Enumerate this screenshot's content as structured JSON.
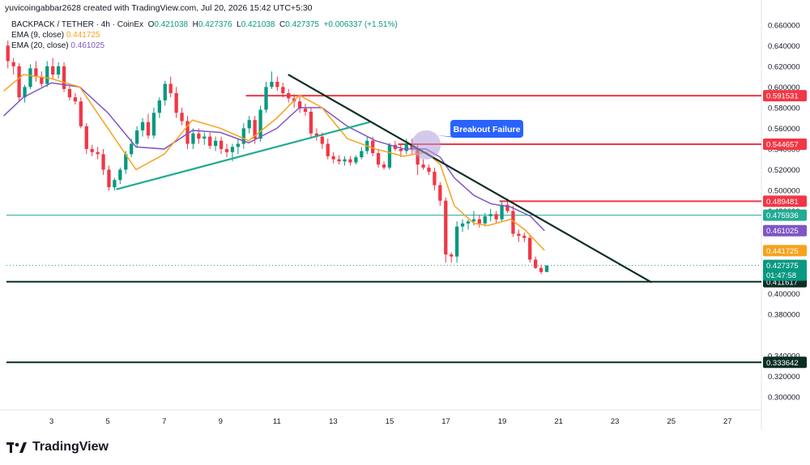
{
  "header": {
    "credit": "yuvicoingabbar2628 created with TradingView.com, Jul 20, 2026 15:42 UTC+5:30"
  },
  "legend": {
    "symbol": "BACKPACK / TETHER · 4h · CoinEx",
    "ohlc": {
      "o_label": "O",
      "o": "0.421038",
      "h_label": "H",
      "h": "0.427376",
      "l_label": "L",
      "l": "0.421038",
      "c_label": "C",
      "c": "0.427375",
      "change": "+0.006337 (+1.51%)"
    },
    "ema9_label": "EMA (9, close)",
    "ema9_value": "0.441725",
    "ema20_label": "EMA (20, close)",
    "ema20_value": "0.461025"
  },
  "footer": {
    "brand": "TradingView"
  },
  "colors": {
    "up": "#089981",
    "down": "#f23645",
    "ema9": "#f7a21b",
    "ema20": "#7e57c2",
    "trend_up": "#22ab94",
    "trend_down": "#0b2e24",
    "hline_red": "#f23645",
    "hline_teal": "#22ab94",
    "hline_dark": "#0b2e24",
    "callout": "#2962ff"
  },
  "chart_data": {
    "type": "candlestick",
    "ylim": [
      0.29,
      0.67
    ],
    "x_range": [
      1.4,
      28.2
    ],
    "x_ticks": [
      3,
      5,
      7,
      9,
      11,
      13,
      15,
      17,
      19,
      21,
      23,
      25,
      27
    ],
    "y_ticks": [
      "0.300000",
      "0.320000",
      "0.340000",
      "0.380000",
      "0.400000",
      "0.420000",
      "0.440000",
      "0.460000",
      "0.480000",
      "0.500000",
      "0.520000",
      "0.540000",
      "0.560000",
      "0.580000",
      "0.600000",
      "0.620000",
      "0.640000",
      "0.660000"
    ],
    "candles": [
      [
        0.64,
        0.645,
        0.618,
        0.625
      ],
      [
        0.624,
        0.628,
        0.612,
        0.62
      ],
      [
        0.62,
        0.623,
        0.586,
        0.59
      ],
      [
        0.59,
        0.602,
        0.585,
        0.6
      ],
      [
        0.6,
        0.622,
        0.598,
        0.618
      ],
      [
        0.618,
        0.625,
        0.605,
        0.61
      ],
      [
        0.61,
        0.615,
        0.6,
        0.603
      ],
      [
        0.603,
        0.625,
        0.6,
        0.62
      ],
      [
        0.62,
        0.628,
        0.608,
        0.612
      ],
      [
        0.612,
        0.624,
        0.608,
        0.62
      ],
      [
        0.62,
        0.624,
        0.595,
        0.598
      ],
      [
        0.598,
        0.602,
        0.587,
        0.59
      ],
      [
        0.59,
        0.594,
        0.583,
        0.586
      ],
      [
        0.586,
        0.59,
        0.56,
        0.562
      ],
      [
        0.562,
        0.565,
        0.535,
        0.54
      ],
      [
        0.54,
        0.544,
        0.533,
        0.537
      ],
      [
        0.537,
        0.542,
        0.53,
        0.535
      ],
      [
        0.535,
        0.54,
        0.515,
        0.52
      ],
      [
        0.52,
        0.524,
        0.5,
        0.503
      ],
      [
        0.503,
        0.512,
        0.5,
        0.51
      ],
      [
        0.51,
        0.522,
        0.506,
        0.52
      ],
      [
        0.52,
        0.538,
        0.516,
        0.535
      ],
      [
        0.535,
        0.55,
        0.532,
        0.545
      ],
      [
        0.545,
        0.562,
        0.541,
        0.558
      ],
      [
        0.558,
        0.57,
        0.552,
        0.566
      ],
      [
        0.566,
        0.574,
        0.55,
        0.553
      ],
      [
        0.553,
        0.58,
        0.55,
        0.575
      ],
      [
        0.575,
        0.59,
        0.57,
        0.587
      ],
      [
        0.587,
        0.606,
        0.582,
        0.603
      ],
      [
        0.603,
        0.61,
        0.59,
        0.594
      ],
      [
        0.594,
        0.6,
        0.57,
        0.575
      ],
      [
        0.575,
        0.58,
        0.563,
        0.567
      ],
      [
        0.567,
        0.572,
        0.54,
        0.545
      ],
      [
        0.545,
        0.56,
        0.54,
        0.555
      ],
      [
        0.555,
        0.56,
        0.545,
        0.55
      ],
      [
        0.55,
        0.556,
        0.544,
        0.552
      ],
      [
        0.552,
        0.556,
        0.54,
        0.543
      ],
      [
        0.543,
        0.552,
        0.538,
        0.548
      ],
      [
        0.548,
        0.552,
        0.535,
        0.54
      ],
      [
        0.54,
        0.545,
        0.532,
        0.537
      ],
      [
        0.537,
        0.545,
        0.528,
        0.542
      ],
      [
        0.542,
        0.55,
        0.535,
        0.545
      ],
      [
        0.545,
        0.565,
        0.54,
        0.56
      ],
      [
        0.56,
        0.572,
        0.555,
        0.568
      ],
      [
        0.568,
        0.572,
        0.545,
        0.55
      ],
      [
        0.55,
        0.582,
        0.547,
        0.578
      ],
      [
        0.578,
        0.605,
        0.575,
        0.6
      ],
      [
        0.6,
        0.615,
        0.598,
        0.605
      ],
      [
        0.605,
        0.61,
        0.596,
        0.6
      ],
      [
        0.6,
        0.604,
        0.59,
        0.594
      ],
      [
        0.594,
        0.598,
        0.585,
        0.589
      ],
      [
        0.589,
        0.593,
        0.58,
        0.586
      ],
      [
        0.586,
        0.592,
        0.575,
        0.579
      ],
      [
        0.579,
        0.584,
        0.572,
        0.576
      ],
      [
        0.576,
        0.58,
        0.55,
        0.555
      ],
      [
        0.555,
        0.56,
        0.548,
        0.552
      ],
      [
        0.552,
        0.556,
        0.54,
        0.545
      ],
      [
        0.545,
        0.55,
        0.53,
        0.533
      ],
      [
        0.533,
        0.537,
        0.526,
        0.53
      ],
      [
        0.53,
        0.534,
        0.525,
        0.528
      ],
      [
        0.528,
        0.533,
        0.524,
        0.53
      ],
      [
        0.53,
        0.533,
        0.524,
        0.527
      ],
      [
        0.527,
        0.534,
        0.525,
        0.532
      ],
      [
        0.532,
        0.542,
        0.53,
        0.538
      ],
      [
        0.538,
        0.552,
        0.535,
        0.548
      ],
      [
        0.548,
        0.552,
        0.533,
        0.536
      ],
      [
        0.536,
        0.54,
        0.522,
        0.525
      ],
      [
        0.525,
        0.528,
        0.52,
        0.522
      ],
      [
        0.522,
        0.546,
        0.52,
        0.544
      ],
      [
        0.544,
        0.548,
        0.538,
        0.54
      ],
      [
        0.54,
        0.545,
        0.532,
        0.538
      ],
      [
        0.538,
        0.55,
        0.535,
        0.545
      ],
      [
        0.545,
        0.55,
        0.535,
        0.54
      ],
      [
        0.54,
        0.545,
        0.515,
        0.525
      ],
      [
        0.525,
        0.53,
        0.52,
        0.522
      ],
      [
        0.522,
        0.525,
        0.515,
        0.518
      ],
      [
        0.518,
        0.522,
        0.5,
        0.505
      ],
      [
        0.505,
        0.508,
        0.485,
        0.49
      ],
      [
        0.49,
        0.493,
        0.43,
        0.438
      ],
      [
        0.438,
        0.44,
        0.43,
        0.436
      ],
      [
        0.436,
        0.47,
        0.43,
        0.465
      ],
      [
        0.465,
        0.472,
        0.46,
        0.468
      ],
      [
        0.468,
        0.472,
        0.462,
        0.47
      ],
      [
        0.47,
        0.48,
        0.466,
        0.472
      ],
      [
        0.472,
        0.476,
        0.464,
        0.468
      ],
      [
        0.468,
        0.478,
        0.465,
        0.475
      ],
      [
        0.475,
        0.482,
        0.47,
        0.477
      ],
      [
        0.477,
        0.48,
        0.468,
        0.472
      ],
      [
        0.472,
        0.49,
        0.47,
        0.486
      ],
      [
        0.486,
        0.492,
        0.478,
        0.48
      ],
      [
        0.48,
        0.485,
        0.455,
        0.458
      ],
      [
        0.458,
        0.462,
        0.45,
        0.456
      ],
      [
        0.456,
        0.459,
        0.45,
        0.454
      ],
      [
        0.454,
        0.457,
        0.43,
        0.433
      ],
      [
        0.433,
        0.436,
        0.424,
        0.425
      ],
      [
        0.425,
        0.428,
        0.419,
        0.421
      ],
      [
        0.421038,
        0.427376,
        0.421038,
        0.427375
      ]
    ],
    "ema9": [
      [
        1.3,
        0.596
      ],
      [
        2.0,
        0.612
      ],
      [
        3.0,
        0.608
      ],
      [
        4.0,
        0.6
      ],
      [
        5.0,
        0.56
      ],
      [
        6.0,
        0.52
      ],
      [
        7.0,
        0.535
      ],
      [
        8.0,
        0.568
      ],
      [
        9.0,
        0.56
      ],
      [
        10.0,
        0.548
      ],
      [
        11.0,
        0.57
      ],
      [
        11.8,
        0.592
      ],
      [
        12.6,
        0.58
      ],
      [
        13.5,
        0.55
      ],
      [
        14.5,
        0.54
      ],
      [
        15.5,
        0.533
      ],
      [
        16.3,
        0.537
      ],
      [
        16.8,
        0.525
      ],
      [
        17.3,
        0.485
      ],
      [
        18.0,
        0.468
      ],
      [
        18.5,
        0.466
      ],
      [
        19.3,
        0.472
      ],
      [
        19.8,
        0.462
      ],
      [
        20.5,
        0.442
      ]
    ],
    "ema20": [
      [
        1.3,
        0.572
      ],
      [
        2.0,
        0.59
      ],
      [
        3.0,
        0.604
      ],
      [
        4.0,
        0.6
      ],
      [
        5.0,
        0.575
      ],
      [
        6.0,
        0.542
      ],
      [
        7.0,
        0.54
      ],
      [
        8.0,
        0.558
      ],
      [
        9.0,
        0.556
      ],
      [
        10.0,
        0.546
      ],
      [
        11.0,
        0.56
      ],
      [
        11.8,
        0.58
      ],
      [
        12.6,
        0.58
      ],
      [
        13.5,
        0.562
      ],
      [
        14.5,
        0.548
      ],
      [
        15.5,
        0.54
      ],
      [
        16.3,
        0.54
      ],
      [
        16.8,
        0.532
      ],
      [
        17.3,
        0.512
      ],
      [
        18.0,
        0.495
      ],
      [
        18.6,
        0.487
      ],
      [
        19.3,
        0.484
      ],
      [
        20.0,
        0.475
      ],
      [
        20.5,
        0.461
      ]
    ],
    "trendlines": [
      {
        "name": "ascending-support",
        "from": [
          5.3,
          0.501
        ],
        "to": [
          14.3,
          0.566
        ]
      },
      {
        "name": "descending-resistance",
        "from": [
          11.4,
          0.612
        ],
        "to": [
          24.3,
          0.411
        ]
      }
    ],
    "hlines": [
      {
        "value": 0.591531,
        "label": "0.591531",
        "kind": "red",
        "x_start": 9.9
      },
      {
        "value": 0.544657,
        "label": "0.544657",
        "kind": "red",
        "x_start": 15.3
      },
      {
        "value": 0.489481,
        "label": "0.489481",
        "kind": "red",
        "x_start": 18.9
      },
      {
        "value": 0.475936,
        "label": "0.475936",
        "kind": "teal",
        "x_start": 1.4
      },
      {
        "value": 0.411617,
        "label": "0.411617",
        "kind": "dark",
        "x_start": 1.4
      },
      {
        "value": 0.333642,
        "label": "0.333642",
        "kind": "dark",
        "x_start": 1.4
      }
    ],
    "price_tags": [
      {
        "value": 0.461025,
        "label": "0.461025",
        "kind": "ema20"
      },
      {
        "value": 0.441725,
        "label": "0.441725",
        "kind": "ema9"
      },
      {
        "value": 0.427375,
        "label": "0.427375",
        "countdown": "01:47:58",
        "kind": "up"
      }
    ],
    "annotation": {
      "text": "Breakout Failure",
      "circle_at": [
        16.3,
        0.544
      ]
    }
  }
}
